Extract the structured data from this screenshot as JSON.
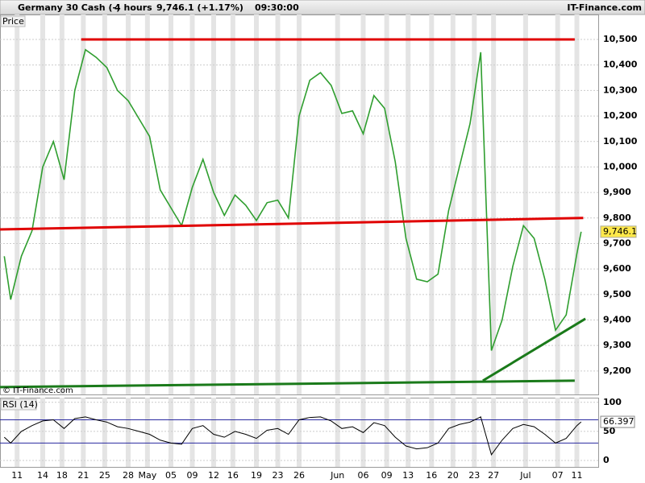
{
  "header": {
    "instrument": "Germany 30 Cash (-)",
    "timeframe": "4 hours",
    "quote": "9,746.1 (+1.17%)",
    "time": "09:30:00",
    "brand": "IT-Finance.com"
  },
  "chart_data": [
    {
      "type": "line",
      "label": "Price",
      "watermark": "© IT-Finance.com",
      "x": [
        0.2,
        0.5,
        1,
        1.5,
        2,
        2.5,
        3,
        3.5,
        4,
        4.5,
        5,
        5.5,
        6,
        6.5,
        7,
        7.5,
        8,
        8.5,
        9,
        9.5,
        10,
        10.5,
        11,
        11.5,
        12,
        12.5,
        13,
        13.5,
        14,
        14.5,
        15,
        15.5,
        16,
        16.5,
        17,
        17.5,
        18,
        18.5,
        19,
        19.5,
        20,
        20.5,
        21,
        21.5,
        22,
        22.5,
        23,
        23.5,
        24,
        24.5,
        25,
        25.5,
        26,
        26.5,
        27,
        27.2
      ],
      "series": [
        {
          "color": "#2f9e2f",
          "values": [
            9650,
            9480,
            9650,
            9750,
            10000,
            10100,
            9950,
            10300,
            10460,
            10430,
            10390,
            10300,
            10260,
            10190,
            10120,
            9910,
            9840,
            9770,
            9920,
            10030,
            9900,
            9810,
            9890,
            9850,
            9790,
            9860,
            9870,
            9800,
            10200,
            10340,
            10370,
            10320,
            10210,
            10220,
            10130,
            10280,
            10230,
            10020,
            9720,
            9560,
            9550,
            9580,
            9830,
            10000,
            10170,
            10450,
            9280,
            9400,
            9610,
            9770,
            9720,
            9560,
            9360,
            9420,
            9660,
            9746
          ]
        }
      ],
      "last_price": {
        "value": 9746.1,
        "label": "9,746.1"
      },
      "trendlines": [
        {
          "color": "#e00000",
          "x": [
            3.8,
            26.9
          ],
          "values": [
            10500,
            10500
          ]
        },
        {
          "color": "#e00000",
          "x": [
            0,
            27.3
          ],
          "values": [
            9755,
            9800
          ]
        },
        {
          "color": "#1a7a1a",
          "x": [
            0,
            26.9
          ],
          "values": [
            9137,
            9162
          ]
        },
        {
          "color": "#1a7a1a",
          "x": [
            22.6,
            27.4
          ],
          "values": [
            9162,
            9405
          ]
        }
      ],
      "xlim": [
        0,
        28
      ],
      "ylim": [
        9108,
        10598
      ],
      "yticks": [
        {
          "value": 9200,
          "label": "9,200"
        },
        {
          "value": 9300,
          "label": "9,300"
        },
        {
          "value": 9400,
          "label": "9,400"
        },
        {
          "value": 9500,
          "label": "9,500"
        },
        {
          "value": 9600,
          "label": "9,600"
        },
        {
          "value": 9700,
          "label": "9,700"
        },
        {
          "value": 9800,
          "label": "9,800"
        },
        {
          "value": 9900,
          "label": "9,900"
        },
        {
          "value": 10000,
          "label": "10,000"
        },
        {
          "value": 10100,
          "label": "10,100"
        },
        {
          "value": 10200,
          "label": "10,200"
        },
        {
          "value": 10300,
          "label": "10,300"
        },
        {
          "value": 10400,
          "label": "10,400"
        },
        {
          "value": 10500,
          "label": "10,500"
        }
      ],
      "xticks": [
        {
          "value": 0.8,
          "label": "11"
        },
        {
          "value": 2.0,
          "label": "14"
        },
        {
          "value": 2.9,
          "label": "18"
        },
        {
          "value": 3.9,
          "label": "21"
        },
        {
          "value": 4.9,
          "label": "25"
        },
        {
          "value": 6.0,
          "label": "28"
        },
        {
          "value": 6.9,
          "label": "May"
        },
        {
          "value": 8.0,
          "label": "05"
        },
        {
          "value": 9.0,
          "label": "09"
        },
        {
          "value": 10.0,
          "label": "12"
        },
        {
          "value": 10.9,
          "label": "16"
        },
        {
          "value": 12.0,
          "label": "19"
        },
        {
          "value": 13.0,
          "label": "23"
        },
        {
          "value": 14.0,
          "label": "26"
        },
        {
          "value": 15.8,
          "label": "Jun"
        },
        {
          "value": 17.0,
          "label": "06"
        },
        {
          "value": 18.1,
          "label": "09"
        },
        {
          "value": 19.1,
          "label": "13"
        },
        {
          "value": 20.2,
          "label": "16"
        },
        {
          "value": 21.2,
          "label": "20"
        },
        {
          "value": 22.2,
          "label": "23"
        },
        {
          "value": 23.1,
          "label": "27"
        },
        {
          "value": 24.6,
          "label": "Jul"
        },
        {
          "value": 26.1,
          "label": "07"
        },
        {
          "value": 27.0,
          "label": "11"
        }
      ]
    },
    {
      "type": "line",
      "label": "RSI (14)",
      "x": [
        0.2,
        0.5,
        1,
        1.5,
        2,
        2.5,
        3,
        3.5,
        4,
        4.5,
        5,
        5.5,
        6,
        6.5,
        7,
        7.5,
        8,
        8.5,
        9,
        9.5,
        10,
        10.5,
        11,
        11.5,
        12,
        12.5,
        13,
        13.5,
        14,
        14.5,
        15,
        15.5,
        16,
        16.5,
        17,
        17.5,
        18,
        18.5,
        19,
        19.5,
        20,
        20.5,
        21,
        21.5,
        22,
        22.5,
        23,
        23.5,
        24,
        24.5,
        25,
        25.5,
        26,
        26.5,
        27,
        27.2
      ],
      "series": [
        {
          "color": "#000000",
          "values": [
            40,
            30,
            50,
            60,
            68,
            70,
            55,
            72,
            75,
            70,
            66,
            58,
            55,
            50,
            45,
            35,
            30,
            28,
            55,
            60,
            45,
            40,
            50,
            45,
            38,
            52,
            55,
            45,
            70,
            74,
            75,
            68,
            55,
            58,
            48,
            65,
            60,
            40,
            25,
            20,
            22,
            30,
            55,
            62,
            66,
            75,
            10,
            35,
            55,
            62,
            58,
            45,
            30,
            38,
            60,
            66.397
          ]
        }
      ],
      "last_value": 66.397,
      "levels": [
        70,
        30
      ],
      "level_color": "#2a2aa0",
      "xlim": [
        0,
        28
      ],
      "ylim": [
        -11,
        108
      ],
      "yticks": [
        0,
        50,
        100
      ]
    }
  ]
}
